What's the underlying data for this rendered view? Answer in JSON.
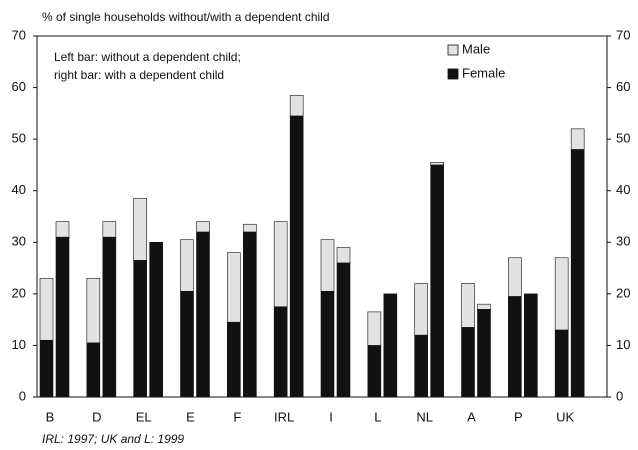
{
  "chart_data": {
    "type": "grouped-stacked-bar",
    "subtitle": "% of single households without/with a dependent child",
    "annotation": [
      "Left bar: without a dependent child;",
      "right bar: with a dependent child"
    ],
    "footnote": "IRL: 1997; UK and L: 1999",
    "categories": [
      "B",
      "D",
      "EL",
      "E",
      "F",
      "IRL",
      "I",
      "L",
      "NL",
      "A",
      "P",
      "UK"
    ],
    "series": [
      {
        "name": "Female",
        "color": "#111111",
        "values": [
          [
            11,
            31
          ],
          [
            10.5,
            31
          ],
          [
            26.5,
            30
          ],
          [
            20.5,
            32
          ],
          [
            14.5,
            32
          ],
          [
            17.5,
            54.5
          ],
          [
            20.5,
            26
          ],
          [
            10,
            20
          ],
          [
            12,
            45
          ],
          [
            13.5,
            17
          ],
          [
            19.5,
            20
          ],
          [
            13,
            48
          ]
        ]
      },
      {
        "name": "Male",
        "color": "#e2e2e2",
        "values": [
          [
            12,
            3
          ],
          [
            12.5,
            3
          ],
          [
            12,
            0
          ],
          [
            10,
            2
          ],
          [
            13.5,
            1.5
          ],
          [
            16.5,
            4
          ],
          [
            10,
            3
          ],
          [
            6.5,
            0
          ],
          [
            10,
            0.5
          ],
          [
            8.5,
            1
          ],
          [
            7.5,
            0
          ],
          [
            14,
            4
          ]
        ]
      }
    ],
    "legend_order": [
      1,
      0
    ],
    "ylim": [
      0,
      70
    ],
    "yticks": [
      0,
      10,
      20,
      30,
      40,
      50,
      60,
      70
    ],
    "y2lim": [
      0,
      70
    ],
    "y2ticks": [
      0,
      10,
      20,
      30,
      40,
      50,
      60,
      70
    ]
  }
}
